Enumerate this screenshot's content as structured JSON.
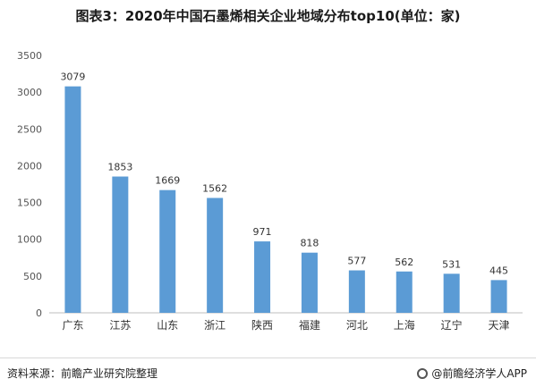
{
  "chart_data": {
    "type": "bar",
    "title": "图表3：2020年中国石墨烯相关企业地域分布top10(单位：家)",
    "categories": [
      "广东",
      "江苏",
      "山东",
      "浙江",
      "陕西",
      "福建",
      "河北",
      "上海",
      "辽宁",
      "天津"
    ],
    "values": [
      3079,
      1853,
      1669,
      1562,
      971,
      818,
      577,
      562,
      531,
      445
    ],
    "ylim": [
      0,
      3500
    ],
    "yticks": [
      0,
      500,
      1000,
      1500,
      2000,
      2500,
      3000,
      3500
    ],
    "xlabel": "",
    "ylabel": "",
    "grid": false,
    "legend": "none",
    "bar_color": "#5b9bd5",
    "show_data_labels": true
  },
  "footer": {
    "source": "资料来源：前瞻产业研究院整理",
    "brand": "@前瞻经济学人APP"
  },
  "colors": {
    "axis": "#bfbfbf",
    "text": "#333333"
  }
}
